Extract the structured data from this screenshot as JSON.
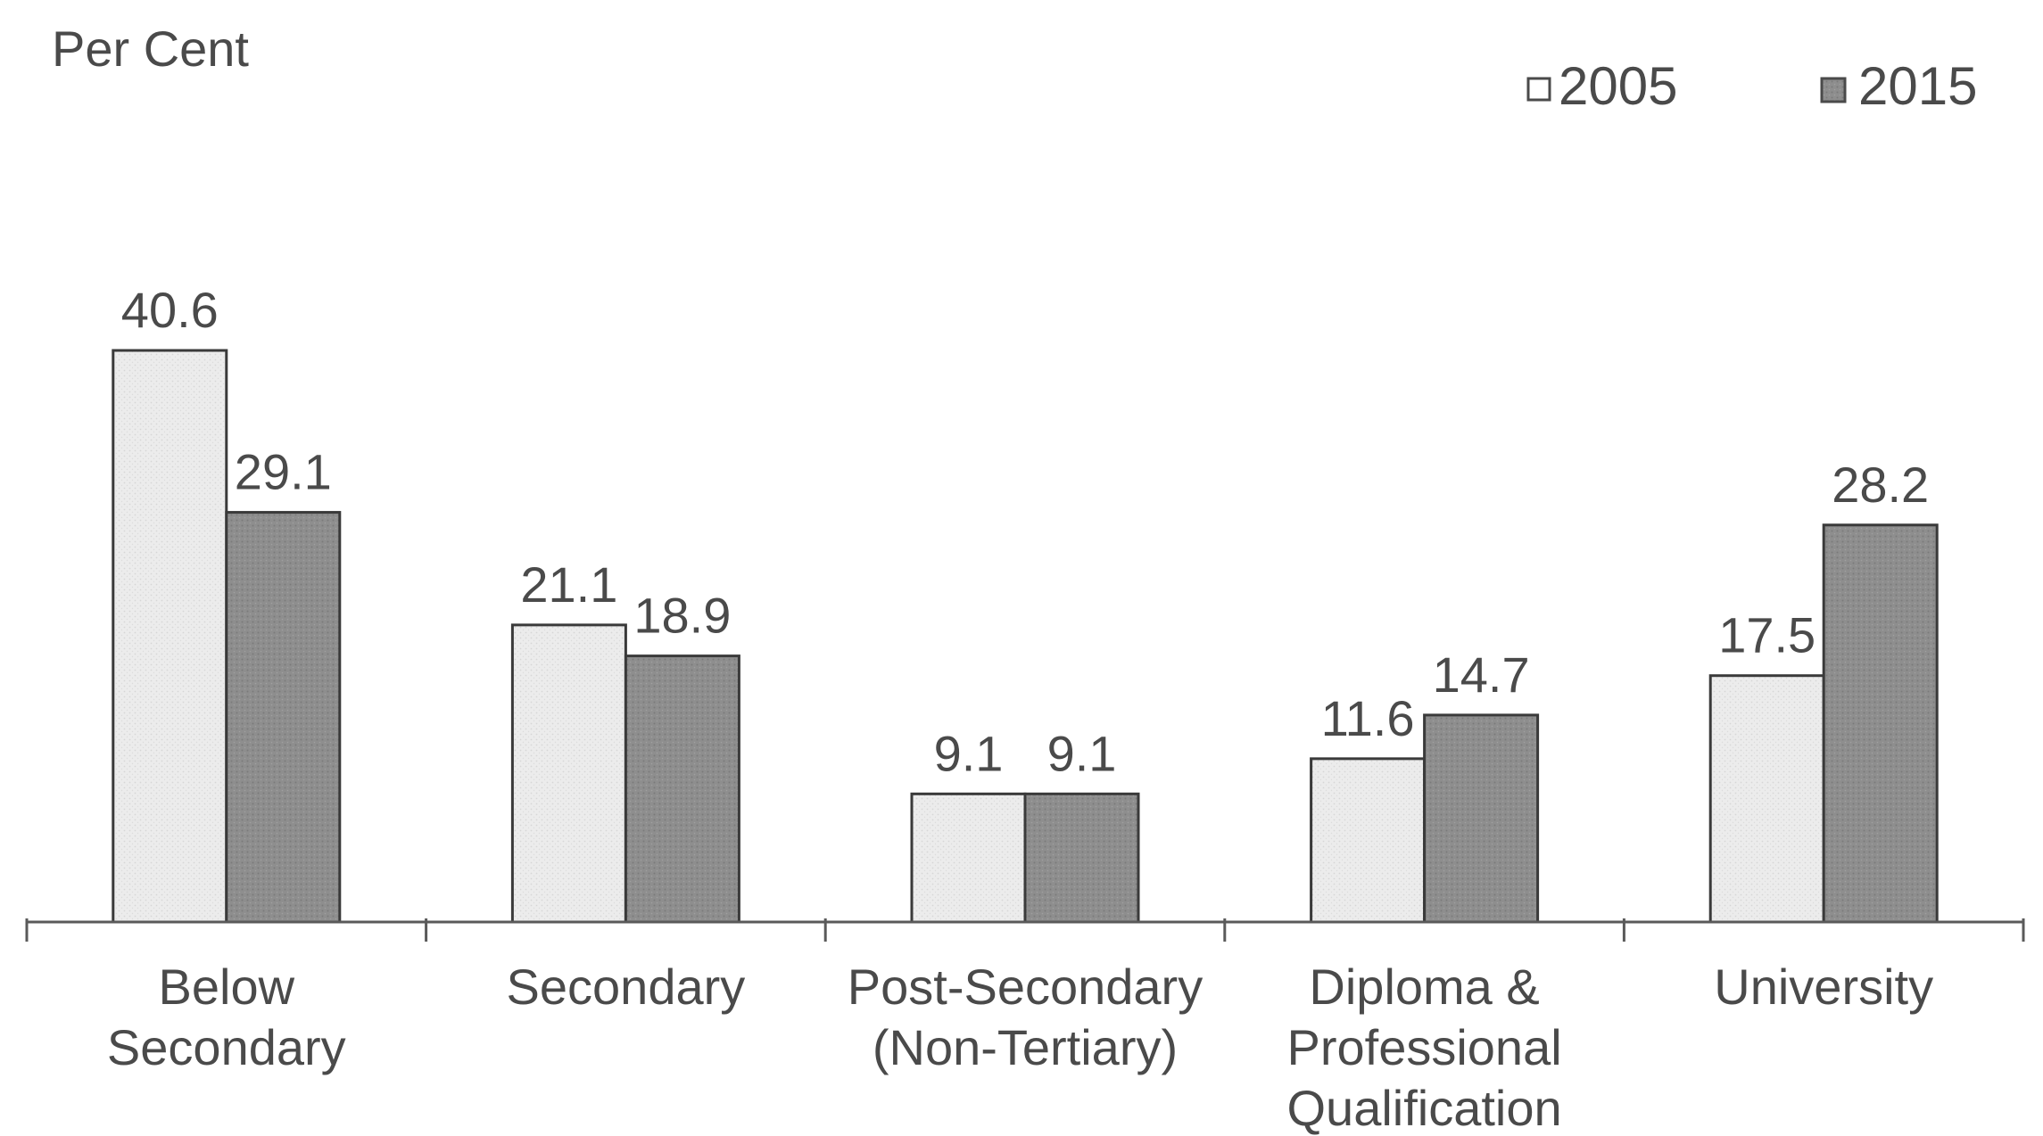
{
  "chart_data": {
    "type": "bar",
    "ylabel": "Per Cent",
    "ylim": [
      0,
      45
    ],
    "grid": false,
    "legend_position": "top-right",
    "categories": [
      [
        "Below",
        "Secondary"
      ],
      [
        "Secondary"
      ],
      [
        "Post-Secondary",
        "(Non-Tertiary)"
      ],
      [
        "Diploma &",
        "Professional",
        "Qualification"
      ],
      [
        "University"
      ]
    ],
    "series": [
      {
        "name": "2005",
        "values": [
          40.6,
          21.1,
          9.1,
          11.6,
          17.5
        ],
        "labels": [
          "40.6",
          "21.1",
          "9.1",
          "11.6",
          "17.5"
        ],
        "color": "#ececec"
      },
      {
        "name": "2015",
        "values": [
          29.1,
          18.9,
          9.1,
          14.7,
          28.2
        ],
        "labels": [
          "29.1",
          "18.9",
          "9.1",
          "14.7",
          "28.2"
        ],
        "color": "#8c8c8c"
      }
    ]
  }
}
